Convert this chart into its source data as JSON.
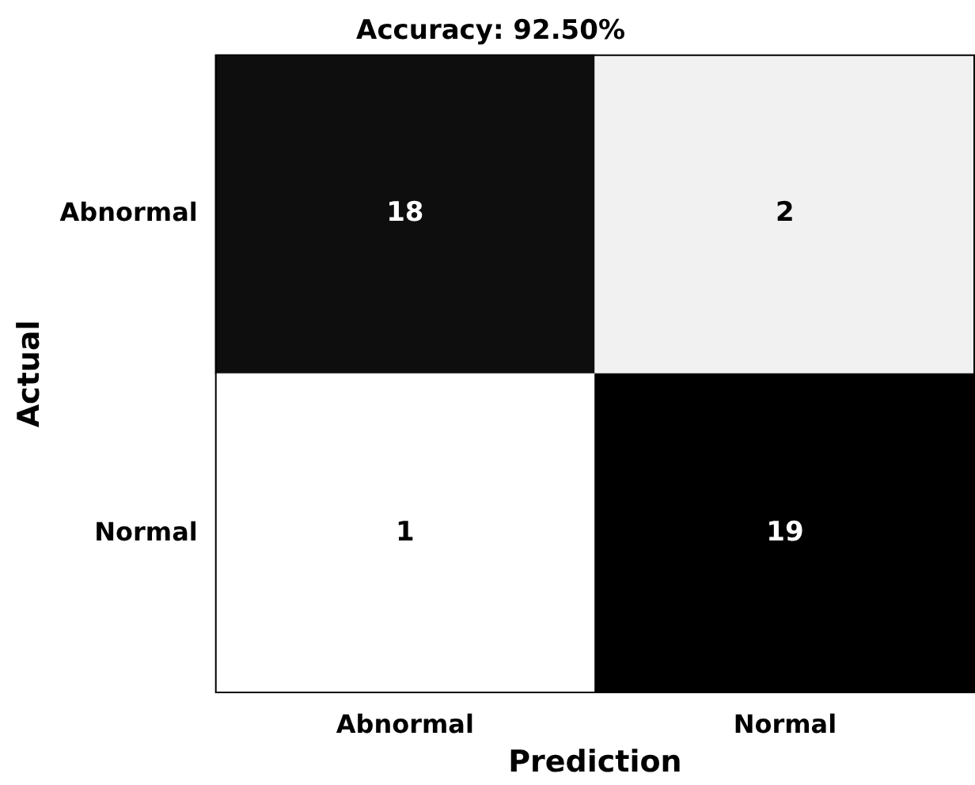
{
  "chart_data": {
    "type": "heatmap",
    "title": "Accuracy: 92.50%",
    "xlabel": "Prediction",
    "ylabel": "Actual",
    "categories": [
      "Abnormal",
      "Normal"
    ],
    "y_categories": [
      "Abnormal",
      "Normal"
    ],
    "cells": [
      [
        18,
        2
      ],
      [
        1,
        19
      ]
    ],
    "data_labels": true
  }
}
